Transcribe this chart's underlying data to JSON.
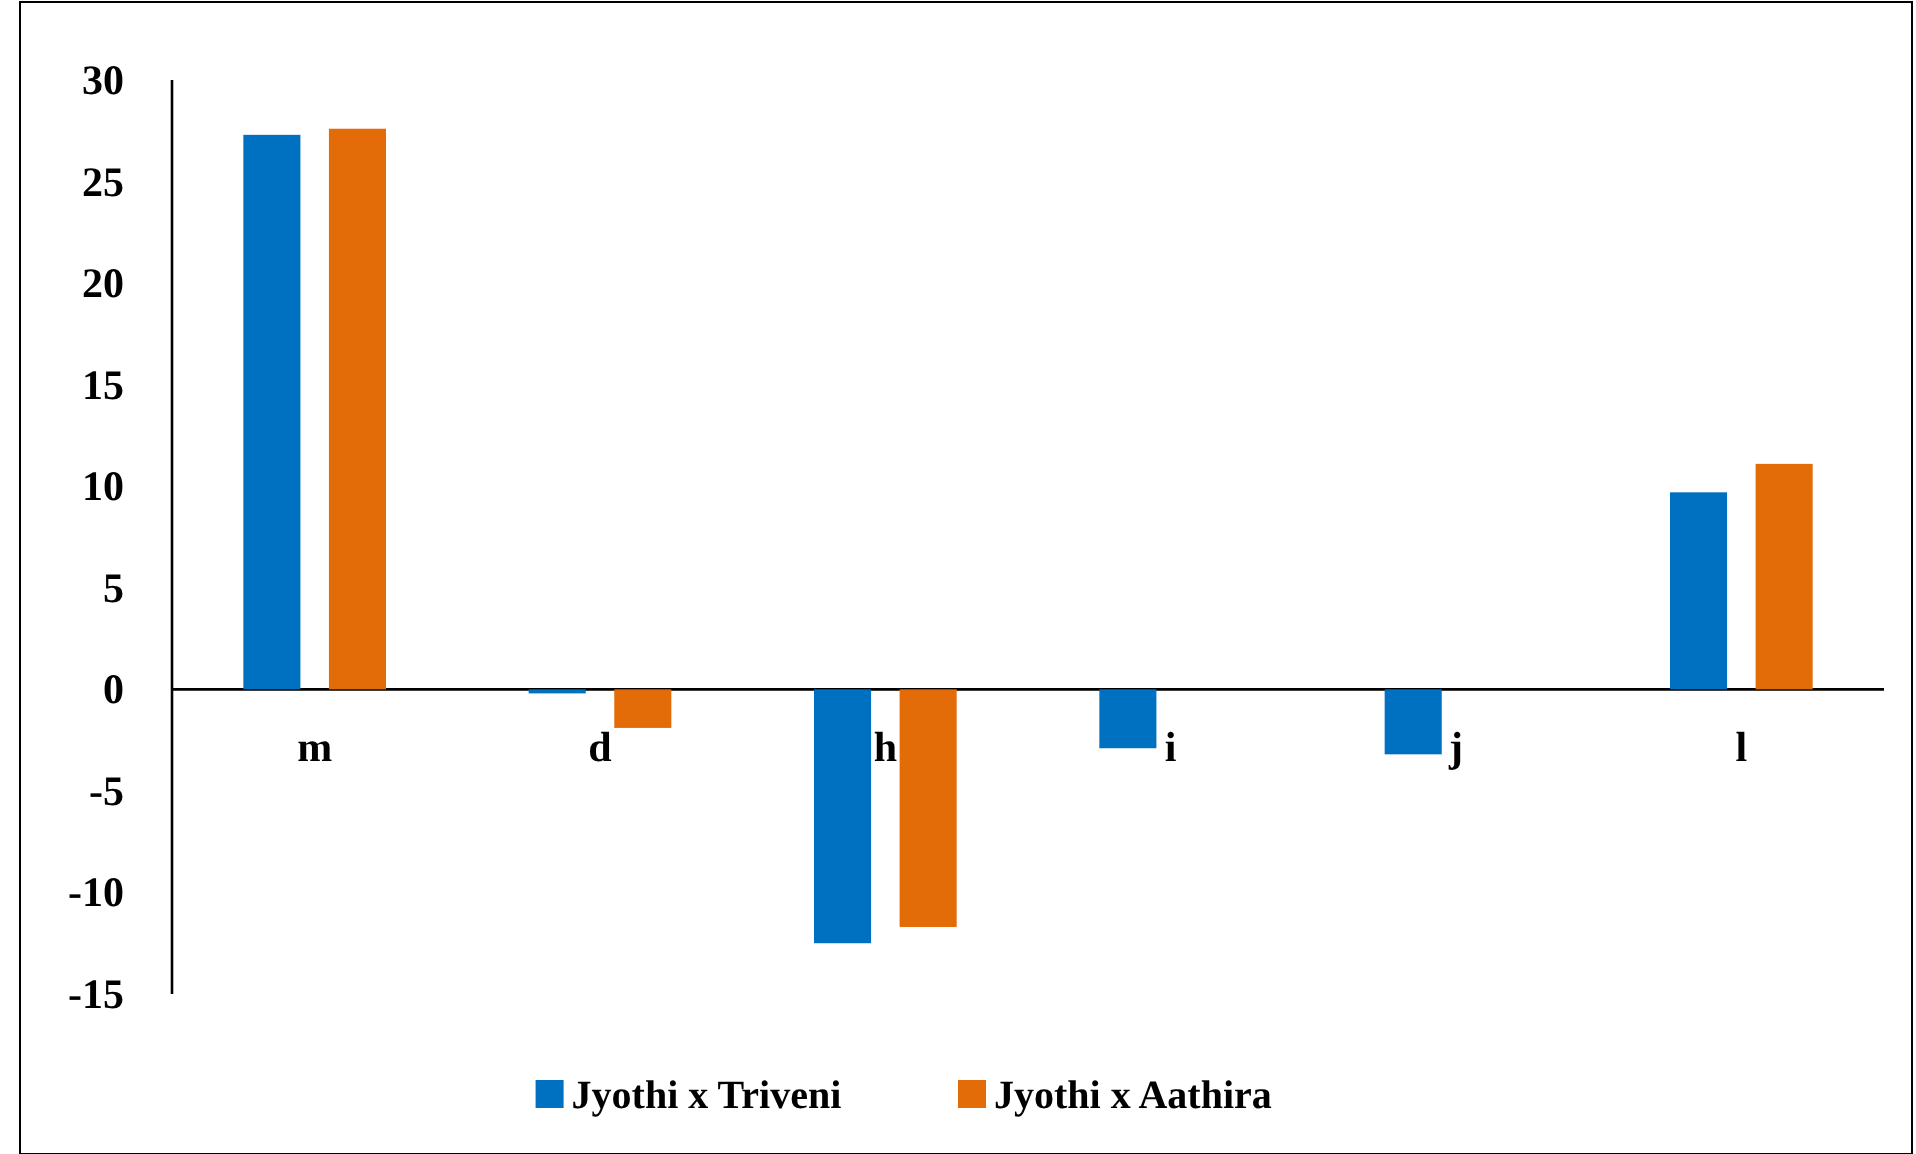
{
  "chart_data": {
    "type": "bar",
    "categories": [
      "m",
      "d",
      "h",
      "i",
      "j",
      "l"
    ],
    "series": [
      {
        "name": "Jyothi x Triveni",
        "color": "#0070c0",
        "values": [
          27.3,
          -0.2,
          -12.5,
          -2.9,
          -3.2,
          9.7
        ]
      },
      {
        "name": "Jyothi x Aathira",
        "color": "#e36c09",
        "values": [
          27.6,
          -1.9,
          -11.7,
          0,
          0,
          11.1
        ]
      }
    ],
    "ylim": [
      -15,
      30
    ],
    "yticks": [
      -15,
      -10,
      -5,
      0,
      5,
      10,
      15,
      20,
      25,
      30
    ],
    "grid": false,
    "legend": "bottom"
  }
}
